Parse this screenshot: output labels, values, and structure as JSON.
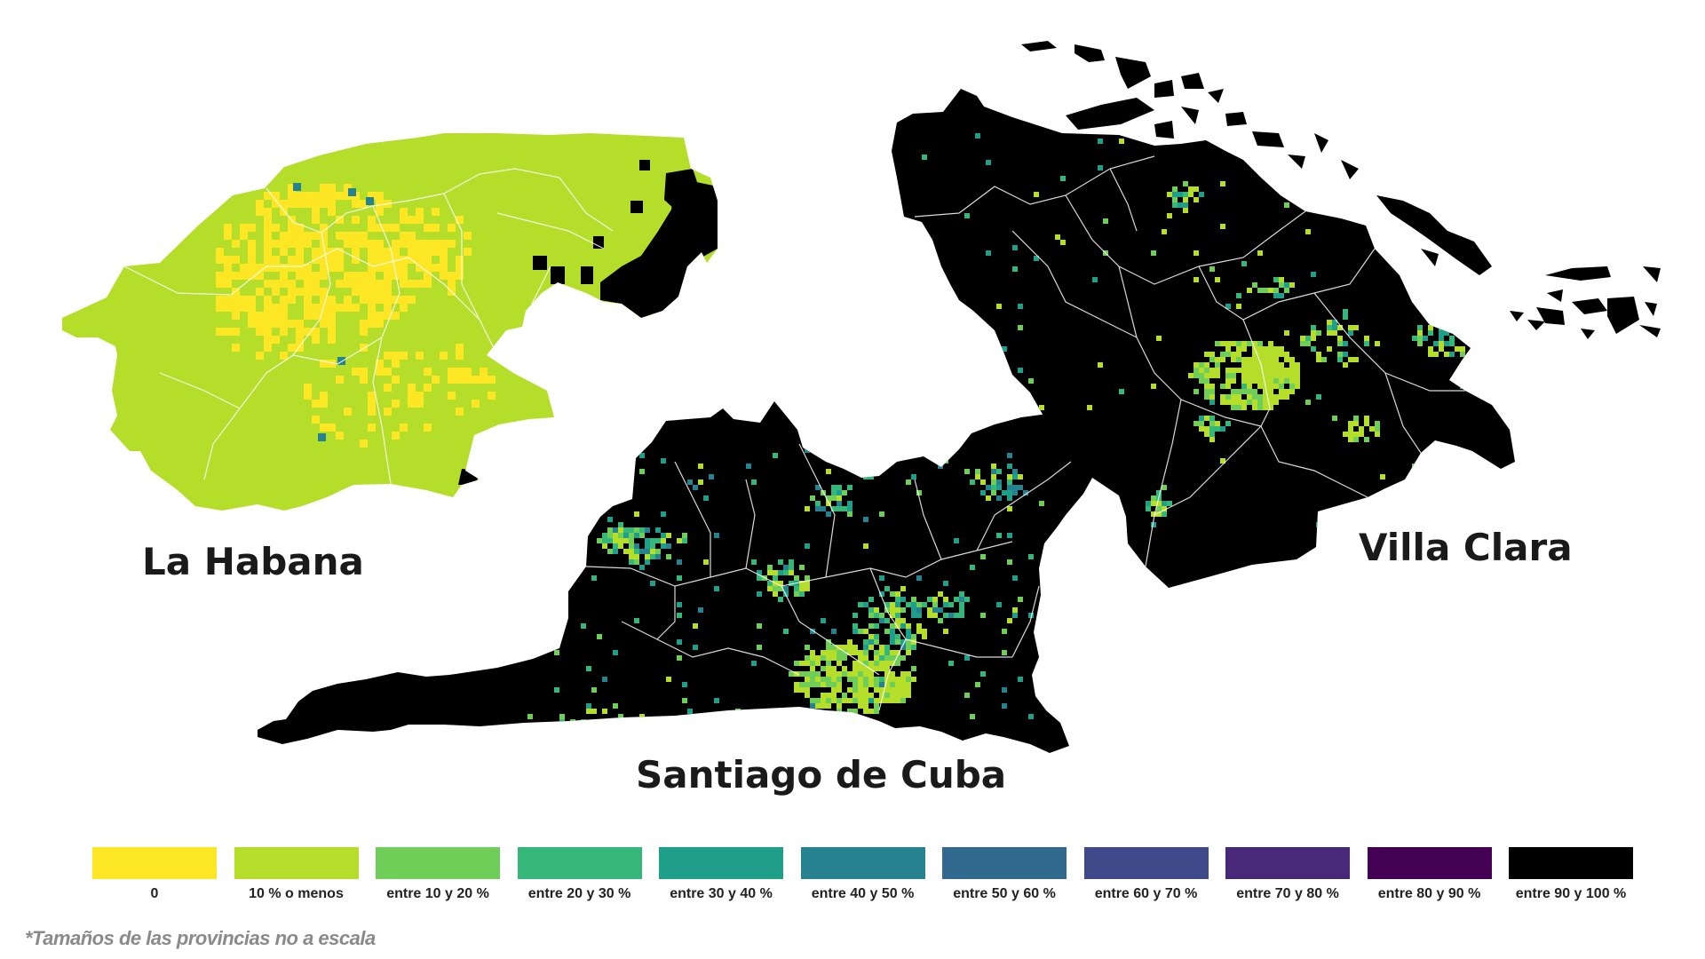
{
  "provinces": [
    {
      "name": "La Habana",
      "base_class": "10 % o menos",
      "hot_class": "0"
    },
    {
      "name": "Villa Clara",
      "base_class": "entre 90 y 100 %",
      "hot_class": "10 % o menos"
    },
    {
      "name": "Santiago de Cuba",
      "base_class": "entre 90 y 100 %",
      "hot_class": "10 % o menos"
    }
  ],
  "legend": {
    "items": [
      {
        "label": "0",
        "color": "#fde725"
      },
      {
        "label": "10 % o menos",
        "color": "#b5de2b"
      },
      {
        "label": "entre 10 y 20 %",
        "color": "#6ece58"
      },
      {
        "label": "entre 20 y 30 %",
        "color": "#35b779"
      },
      {
        "label": "entre 30 y 40 %",
        "color": "#1f9e89"
      },
      {
        "label": "entre 40 y 50 %",
        "color": "#26828e"
      },
      {
        "label": "entre 50 y 60 %",
        "color": "#31688e"
      },
      {
        "label": "entre 60 y 70 %",
        "color": "#3e4989"
      },
      {
        "label": "entre 70 y 80 %",
        "color": "#482878"
      },
      {
        "label": "entre 80 y 90 %",
        "color": "#440154"
      },
      {
        "label": "entre 90 y 100 %",
        "color": "#000000"
      }
    ]
  },
  "footnote": "*Tamaños de las provincias no a escala"
}
